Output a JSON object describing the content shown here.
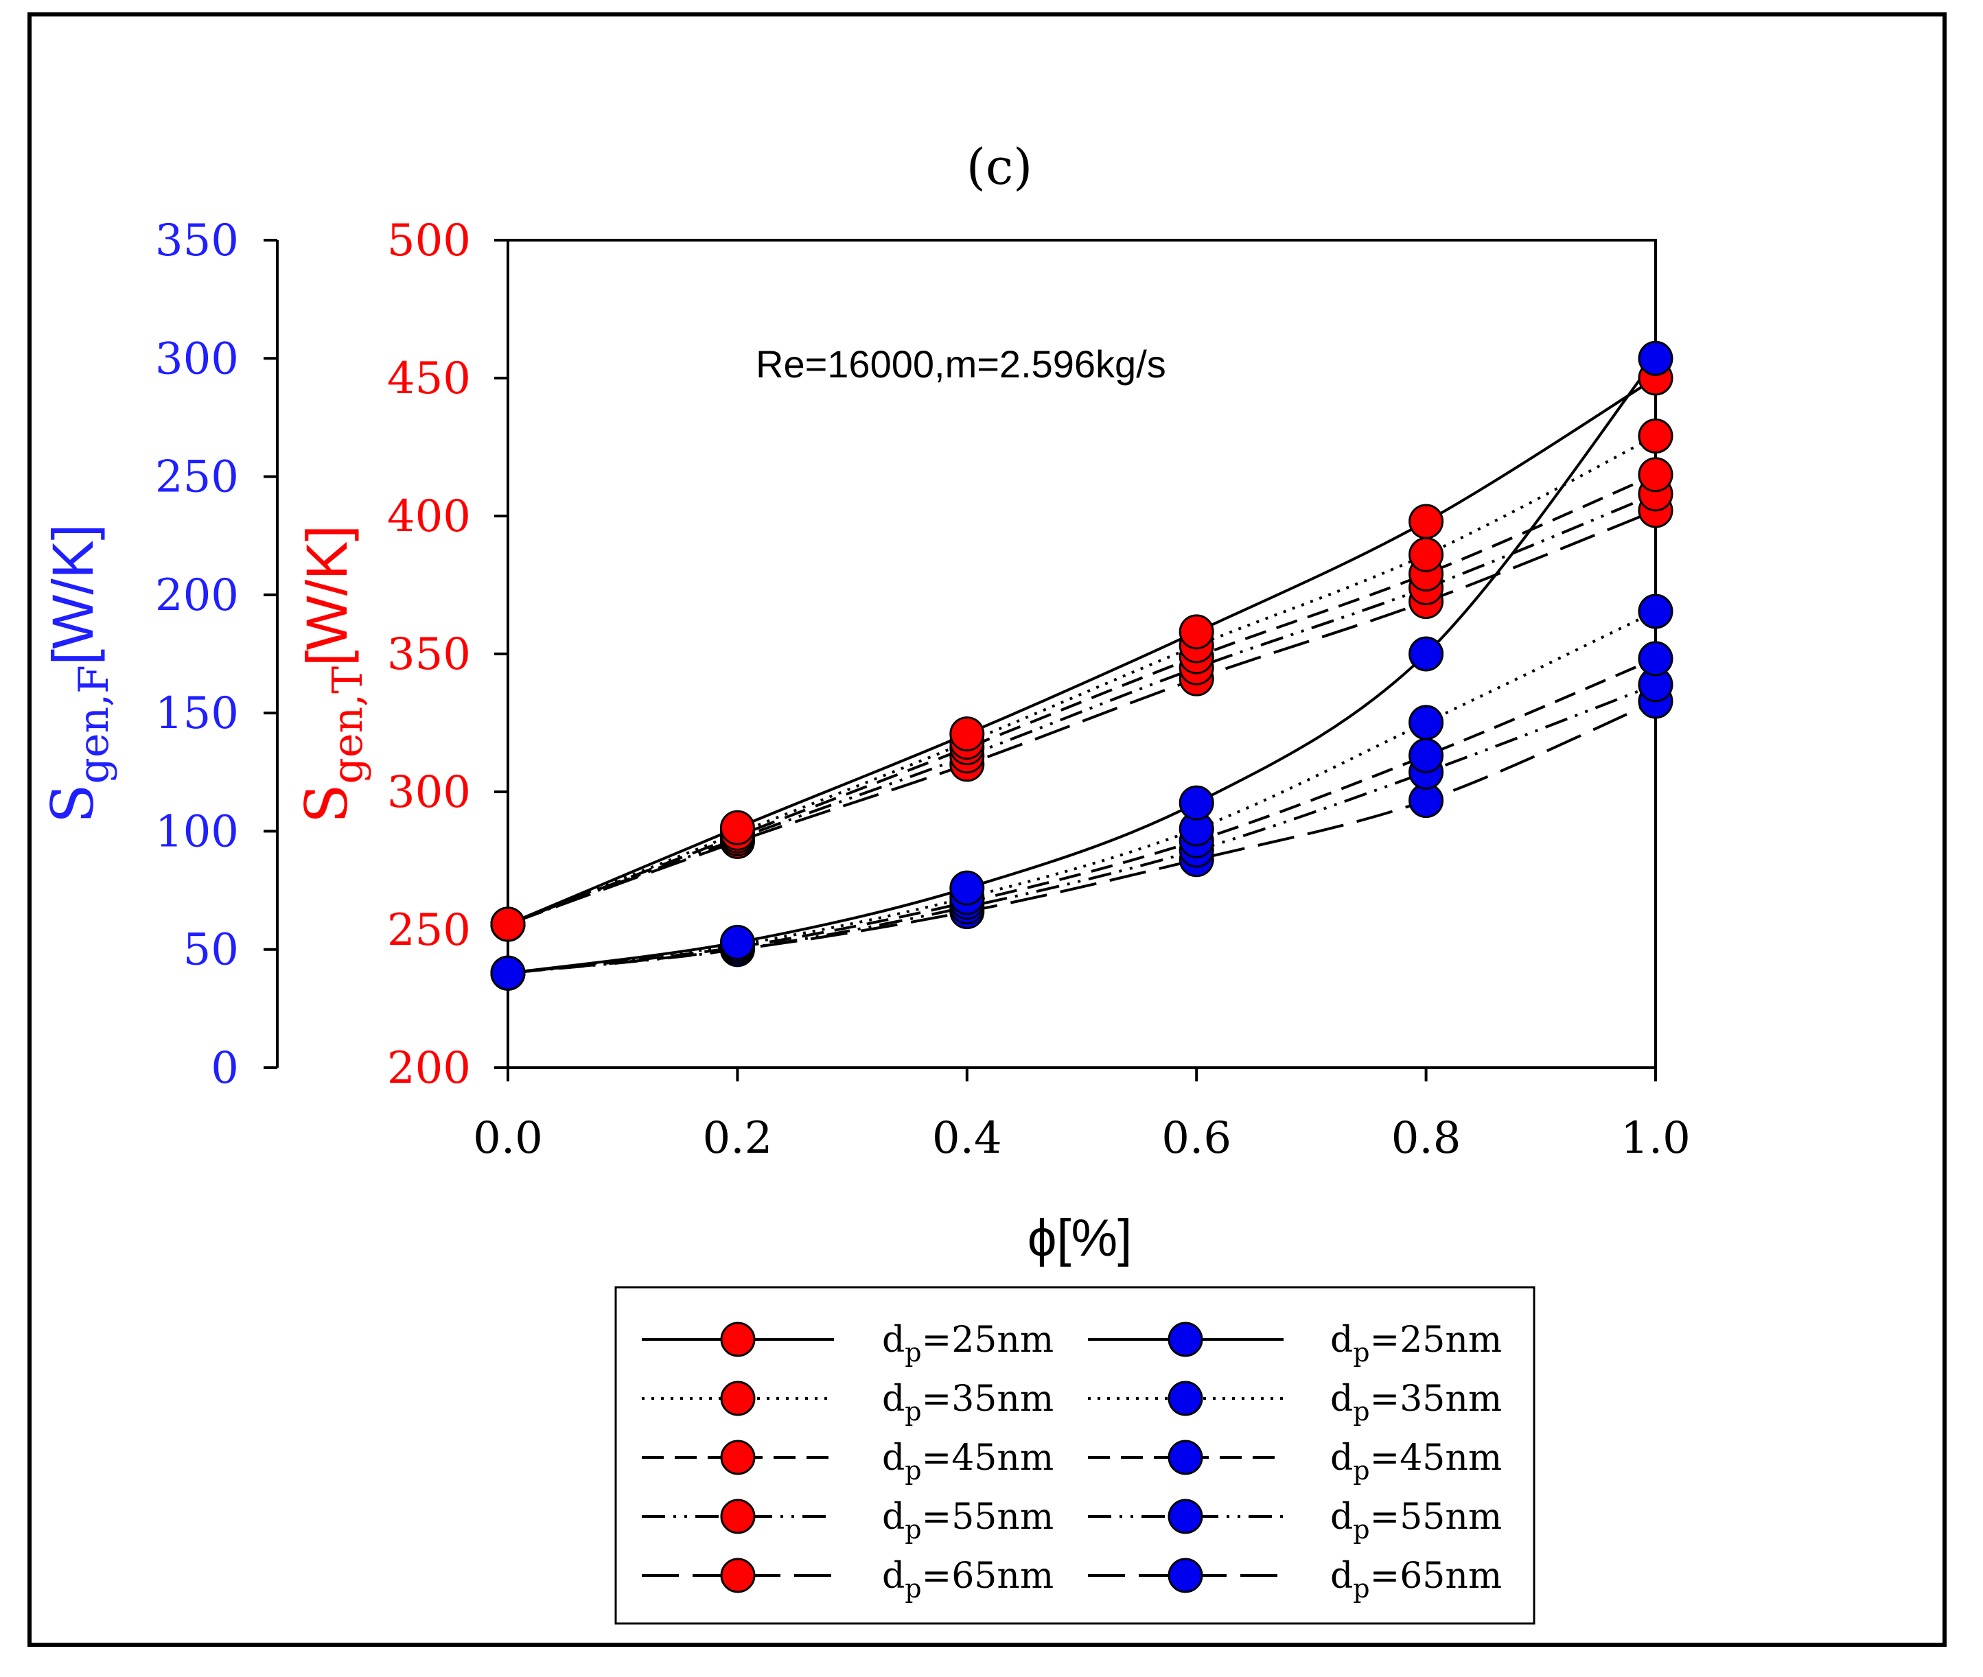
{
  "chart_data": {
    "type": "line",
    "title": "(c)",
    "annotation": "Re=16000,m=2.596kg/s",
    "xlabel": "ϕ[%]",
    "x": [
      0.0,
      0.2,
      0.4,
      0.6,
      0.8,
      1.0
    ],
    "x_tick_labels": [
      "0.0",
      "0.2",
      "0.4",
      "0.6",
      "0.8",
      "1.0"
    ],
    "xlim": [
      0,
      1
    ],
    "left_axis": {
      "label_main": "S",
      "label_sub": "gen,F",
      "label_unit": "[W/K]",
      "color": "#1f1fff",
      "ylim": [
        0,
        350
      ],
      "ticks": [
        "0",
        "50",
        "100",
        "150",
        "200",
        "250",
        "300",
        "350"
      ]
    },
    "right_axis": {
      "label_main": "S",
      "label_sub": "gen,T",
      "label_unit": "[W/K]",
      "color": "#ff0000",
      "ylim": [
        200,
        500
      ],
      "ticks": [
        "200",
        "250",
        "300",
        "350",
        "400",
        "450",
        "500"
      ]
    },
    "series_thermal": [
      {
        "name": "dp=25nm",
        "dash": "solid",
        "values": [
          252,
          287,
          321,
          358,
          398,
          450
        ]
      },
      {
        "name": "dp=35nm",
        "dash": "dotted",
        "values": [
          252,
          285,
          318,
          353,
          386,
          429
        ]
      },
      {
        "name": "dp=45nm",
        "dash": "dashed",
        "values": [
          252,
          284,
          316,
          349,
          379,
          415
        ]
      },
      {
        "name": "dp=55nm",
        "dash": "dashdotdot",
        "values": [
          252,
          283,
          313,
          345,
          374,
          408
        ]
      },
      {
        "name": "dp=65nm",
        "dash": "longdash",
        "values": [
          252,
          282,
          310,
          341,
          369,
          402
        ]
      }
    ],
    "series_friction": [
      {
        "name": "dp=25nm",
        "dash": "solid",
        "values": [
          40,
          53,
          76,
          112,
          175,
          300
        ]
      },
      {
        "name": "dp=35nm",
        "dash": "dotted",
        "values": [
          40,
          52,
          72,
          101,
          146,
          193
        ]
      },
      {
        "name": "dp=45nm",
        "dash": "dashed",
        "values": [
          40,
          51,
          70,
          96,
          132,
          173
        ]
      },
      {
        "name": "dp=55nm",
        "dash": "dashdotdot",
        "values": [
          40,
          50,
          68,
          92,
          125,
          162
        ]
      },
      {
        "name": "dp=65nm",
        "dash": "longdash",
        "values": [
          40,
          50,
          66,
          88,
          113,
          155
        ]
      }
    ],
    "legend": {
      "position": "bottom-center",
      "entries_thermal": [
        {
          "prefix": "d",
          "sub": "p",
          "suffix": "=25nm"
        },
        {
          "prefix": "d",
          "sub": "p",
          "suffix": "=35nm"
        },
        {
          "prefix": "d",
          "sub": "p",
          "suffix": "=45nm"
        },
        {
          "prefix": "d",
          "sub": "p",
          "suffix": "=55nm"
        },
        {
          "prefix": "d",
          "sub": "p",
          "suffix": "=65nm"
        }
      ],
      "entries_friction": [
        {
          "prefix": "d",
          "sub": "p",
          "suffix": "=25nm"
        },
        {
          "prefix": "d",
          "sub": "p",
          "suffix": "=35nm"
        },
        {
          "prefix": "d",
          "sub": "p",
          "suffix": "=45nm"
        },
        {
          "prefix": "d",
          "sub": "p",
          "suffix": "=55nm"
        },
        {
          "prefix": "d",
          "sub": "p",
          "suffix": "=65nm"
        }
      ]
    },
    "grid": false
  }
}
